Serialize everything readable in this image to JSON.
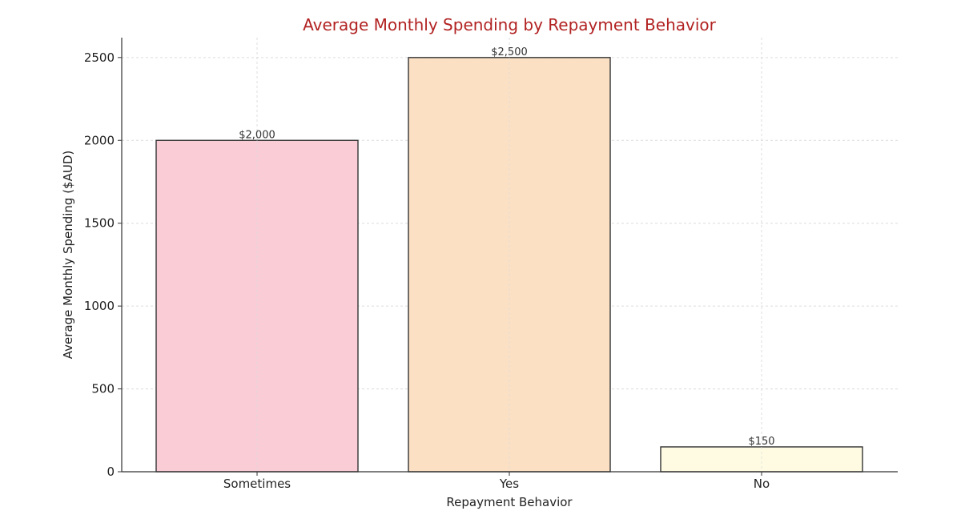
{
  "chart_data": {
    "type": "bar",
    "title": "Average Monthly Spending by Repayment Behavior",
    "xlabel": "Repayment Behavior",
    "ylabel": "Average Monthly Spending ($AUD)",
    "categories": [
      "Sometimes",
      "Yes",
      "No"
    ],
    "values": [
      2000,
      2500,
      150
    ],
    "data_labels": [
      "$2,000",
      "$2,500",
      "$150"
    ],
    "yticks": [
      0,
      500,
      1000,
      1500,
      2000,
      2500
    ],
    "ylim": [
      0,
      2620
    ],
    "grid": true,
    "colors": {
      "title": "#b22222",
      "bars": [
        "#f9ccd6",
        "#fbe0c4",
        "#fefbe2"
      ]
    }
  }
}
